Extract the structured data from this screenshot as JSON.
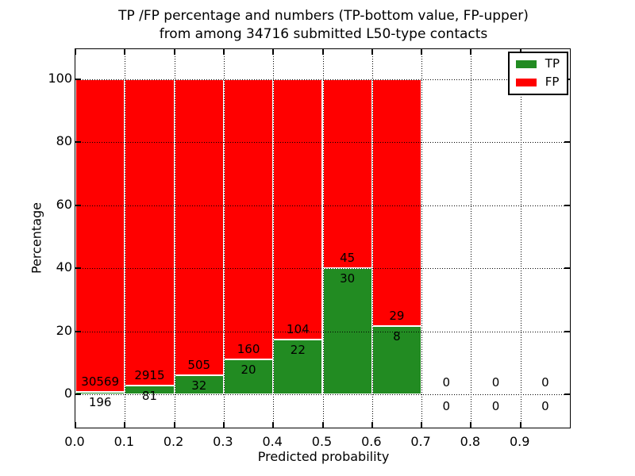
{
  "chart_data": {
    "type": "bar",
    "stacked": true,
    "normalized_per_bin_percent": 100,
    "title_line1": "TP /FP percentage and numbers (TP-bottom value, FP-upper)",
    "title_line2": "from among 34716 submitted L50-type contacts",
    "xlabel": "Predicted probability",
    "ylabel": "Percentage",
    "xlim": [
      0.0,
      1.0
    ],
    "ylim_percent": [
      -10.6,
      109.6
    ],
    "bin_width": 0.1,
    "grid": "dotted",
    "legend_position": "upper-right",
    "xtick_values": [
      0.0,
      0.1,
      0.2,
      0.3,
      0.4,
      0.5,
      0.6,
      0.7,
      0.8,
      0.9
    ],
    "xtick_labels": [
      "0.0",
      "0.1",
      "0.2",
      "0.3",
      "0.4",
      "0.5",
      "0.6",
      "0.7",
      "0.8",
      "0.9"
    ],
    "ytick_values": [
      0,
      20,
      40,
      60,
      80,
      100
    ],
    "ytick_labels": [
      "0",
      "20",
      "40",
      "60",
      "80",
      "100"
    ],
    "series": [
      {
        "name": "TP",
        "color": "#228b22"
      },
      {
        "name": "FP",
        "color": "#ff0000"
      }
    ],
    "bins": [
      {
        "x_start": 0.0,
        "tp": 196,
        "fp": 30569
      },
      {
        "x_start": 0.1,
        "tp": 81,
        "fp": 2915
      },
      {
        "x_start": 0.2,
        "tp": 32,
        "fp": 505
      },
      {
        "x_start": 0.3,
        "tp": 20,
        "fp": 160
      },
      {
        "x_start": 0.4,
        "tp": 22,
        "fp": 104
      },
      {
        "x_start": 0.5,
        "tp": 30,
        "fp": 45
      },
      {
        "x_start": 0.6,
        "tp": 8,
        "fp": 29
      },
      {
        "x_start": 0.7,
        "tp": 0,
        "fp": 0
      },
      {
        "x_start": 0.8,
        "tp": 0,
        "fp": 0
      },
      {
        "x_start": 0.9,
        "tp": 0,
        "fp": 0
      }
    ]
  }
}
